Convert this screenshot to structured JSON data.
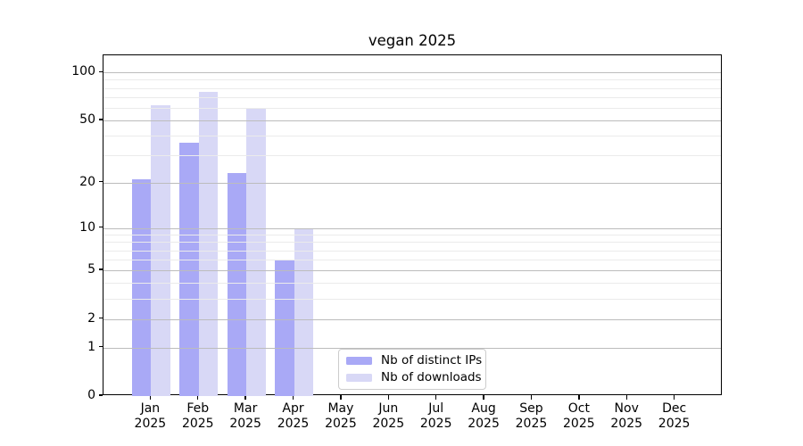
{
  "chart_data": {
    "type": "bar",
    "title": "vegan 2025",
    "categories": [
      "Jan\n2025",
      "Feb\n2025",
      "Mar\n2025",
      "Apr\n2025",
      "May\n2025",
      "Jun\n2025",
      "Jul\n2025",
      "Aug\n2025",
      "Sep\n2025",
      "Oct\n2025",
      "Nov\n2025",
      "Dec\n2025"
    ],
    "series": [
      {
        "key": "ips",
        "name": "Nb of distinct IPs",
        "color": "#a9a9f6",
        "values": [
          21,
          36,
          23,
          6,
          0,
          0,
          0,
          0,
          0,
          0,
          0,
          0
        ]
      },
      {
        "key": "downloads",
        "name": "Nb of downloads",
        "color": "#d8d8f6",
        "values": [
          62,
          76,
          59,
          10,
          0,
          0,
          0,
          0,
          0,
          0,
          0,
          0
        ]
      }
    ],
    "yscale": "log1p",
    "ylim": [
      0,
      128
    ],
    "yticks_major": [
      0,
      1,
      2,
      5,
      10,
      20,
      50,
      100
    ],
    "yticks_minor": [
      3,
      4,
      6,
      7,
      8,
      9,
      30,
      40,
      60,
      70,
      80,
      90
    ],
    "grid": "horizontal",
    "legend_position": "lower center"
  },
  "colors": {
    "background": "#ffffff",
    "axis": "#000000",
    "grid_major": "#bcbcbc",
    "grid_minor": "#ebebeb",
    "legend_border": "#cccccc"
  }
}
